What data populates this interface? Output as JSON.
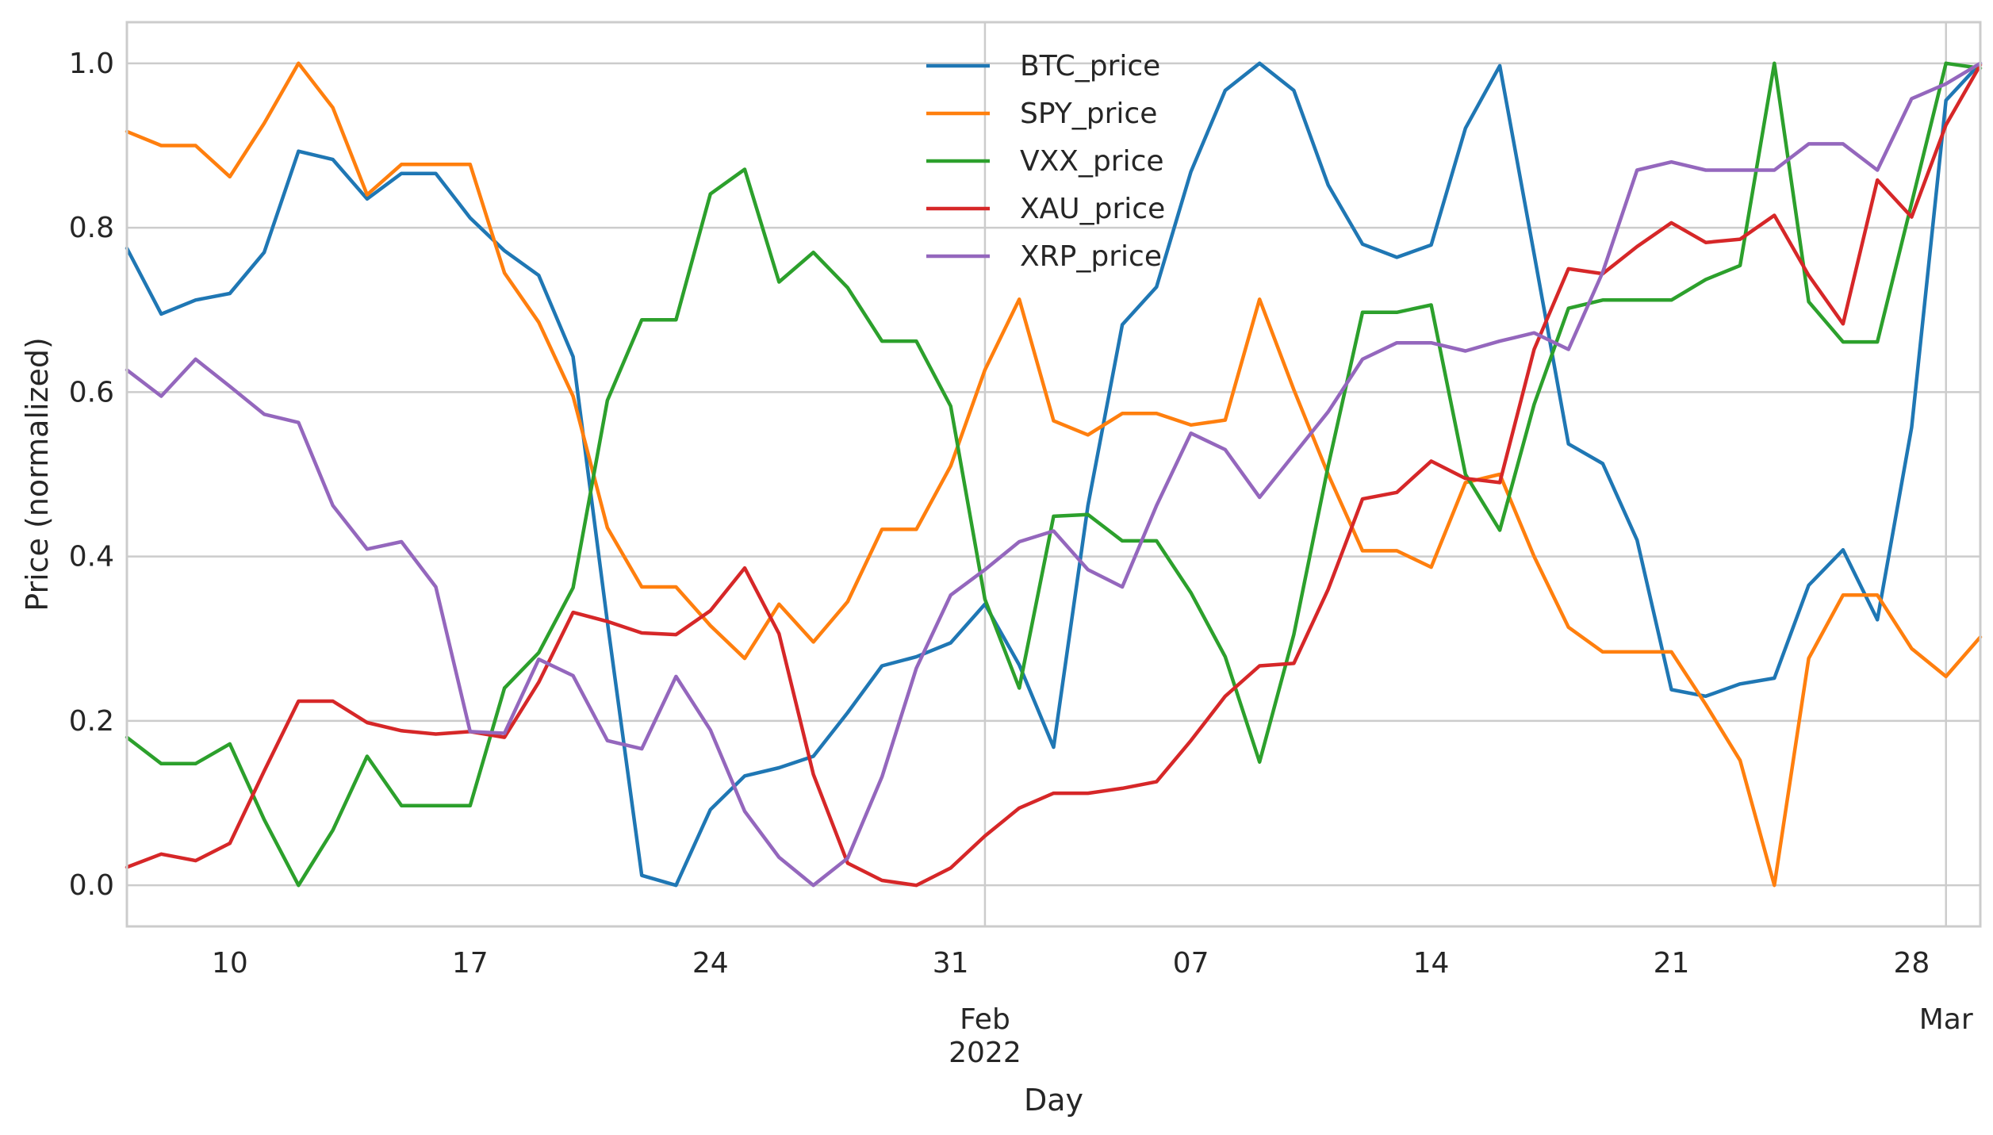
{
  "chart_data": {
    "type": "line",
    "title": "",
    "xlabel": "Day",
    "ylabel": "Price (normalized)",
    "x": [
      "2022-01-07",
      "2022-01-08",
      "2022-01-09",
      "2022-01-10",
      "2022-01-11",
      "2022-01-12",
      "2022-01-13",
      "2022-01-14",
      "2022-01-15",
      "2022-01-16",
      "2022-01-17",
      "2022-01-18",
      "2022-01-19",
      "2022-01-20",
      "2022-01-21",
      "2022-01-22",
      "2022-01-23",
      "2022-01-24",
      "2022-01-25",
      "2022-01-26",
      "2022-01-27",
      "2022-01-28",
      "2022-01-29",
      "2022-01-30",
      "2022-01-31",
      "2022-02-01",
      "2022-02-02",
      "2022-02-03",
      "2022-02-04",
      "2022-02-05",
      "2022-02-06",
      "2022-02-07",
      "2022-02-08",
      "2022-02-09",
      "2022-02-10",
      "2022-02-11",
      "2022-02-12",
      "2022-02-13",
      "2022-02-14",
      "2022-02-15",
      "2022-02-16",
      "2022-02-17",
      "2022-02-18",
      "2022-02-19",
      "2022-02-20",
      "2022-02-21",
      "2022-02-22",
      "2022-02-23",
      "2022-02-24",
      "2022-02-25",
      "2022-02-26",
      "2022-02-27",
      "2022-02-28",
      "2022-03-01",
      "2022-03-02"
    ],
    "xlim": [
      "2022-01-07",
      "2022-03-02"
    ],
    "ylim": [
      -0.05,
      1.05
    ],
    "y_ticks": [
      "0.0",
      "0.2",
      "0.4",
      "0.6",
      "0.8",
      "1.0"
    ],
    "y_tick_values": [
      0,
      0.2,
      0.4,
      0.6,
      0.8,
      1.0
    ],
    "x_ticks": [
      {
        "date": "2022-01-10",
        "label": "10",
        "sub": ""
      },
      {
        "date": "2022-01-17",
        "label": "17",
        "sub": ""
      },
      {
        "date": "2022-01-24",
        "label": "24",
        "sub": ""
      },
      {
        "date": "2022-01-31",
        "label": "31",
        "sub": ""
      },
      {
        "date": "2022-02-01",
        "label": "",
        "sub": "Feb\n2022"
      },
      {
        "date": "2022-02-07",
        "label": "07",
        "sub": ""
      },
      {
        "date": "2022-02-14",
        "label": "14",
        "sub": ""
      },
      {
        "date": "2022-02-21",
        "label": "21",
        "sub": ""
      },
      {
        "date": "2022-02-28",
        "label": "28",
        "sub": ""
      },
      {
        "date": "2022-03-01",
        "label": "",
        "sub": "Mar"
      }
    ],
    "grid": true,
    "legend_position": "top-center",
    "series": [
      {
        "name": "BTC_price",
        "color": "#1f77b4",
        "values": [
          0.775,
          0.695,
          0.712,
          0.72,
          0.77,
          0.893,
          0.883,
          0.835,
          0.866,
          0.866,
          0.812,
          0.772,
          0.742,
          0.643,
          0.32,
          0.012,
          0.0,
          0.092,
          0.133,
          0.143,
          0.157,
          0.21,
          0.267,
          0.278,
          0.295,
          0.342,
          0.268,
          0.168,
          0.462,
          0.682,
          0.728,
          0.868,
          0.967,
          1.0,
          0.967,
          0.852,
          0.78,
          0.764,
          0.779,
          0.921,
          0.997,
          0.768,
          0.537,
          0.513,
          0.42,
          0.238,
          0.23,
          0.245,
          0.252,
          0.365,
          0.408,
          0.323,
          0.557,
          0.955,
          1.0
        ]
      },
      {
        "name": "SPY_price",
        "color": "#ff7f0e",
        "values": [
          0.917,
          0.9,
          0.9,
          0.862,
          0.927,
          1.0,
          0.946,
          0.84,
          0.877,
          0.877,
          0.877,
          0.745,
          0.685,
          0.595,
          0.435,
          0.363,
          0.363,
          0.316,
          0.276,
          0.342,
          0.296,
          0.345,
          0.433,
          0.433,
          0.51,
          0.627,
          0.713,
          0.565,
          0.548,
          0.574,
          0.574,
          0.56,
          0.566,
          0.713,
          0.603,
          0.5,
          0.407,
          0.407,
          0.387,
          0.49,
          0.5,
          0.4,
          0.314,
          0.284,
          0.284,
          0.284,
          0.22,
          0.152,
          0.0,
          0.276,
          0.353,
          0.353,
          0.288,
          0.254,
          0.302
        ]
      },
      {
        "name": "VXX_price",
        "color": "#2ca02c",
        "values": [
          0.18,
          0.148,
          0.148,
          0.172,
          0.08,
          0.0,
          0.067,
          0.157,
          0.097,
          0.097,
          0.097,
          0.24,
          0.283,
          0.362,
          0.59,
          0.688,
          0.688,
          0.841,
          0.871,
          0.734,
          0.77,
          0.727,
          0.662,
          0.662,
          0.583,
          0.348,
          0.24,
          0.449,
          0.451,
          0.419,
          0.419,
          0.356,
          0.278,
          0.15,
          0.305,
          0.51,
          0.697,
          0.697,
          0.706,
          0.5,
          0.432,
          0.585,
          0.702,
          0.712,
          0.712,
          0.712,
          0.737,
          0.754,
          1.0,
          0.71,
          0.661,
          0.661,
          0.83,
          1.0,
          0.994
        ]
      },
      {
        "name": "XAU_price",
        "color": "#d62728",
        "values": [
          0.022,
          0.038,
          0.03,
          0.051,
          0.139,
          0.224,
          0.224,
          0.198,
          0.188,
          0.184,
          0.187,
          0.18,
          0.247,
          0.332,
          0.321,
          0.307,
          0.305,
          0.334,
          0.386,
          0.306,
          0.135,
          0.027,
          0.006,
          0.0,
          0.021,
          0.06,
          0.094,
          0.112,
          0.112,
          0.118,
          0.126,
          0.176,
          0.23,
          0.267,
          0.27,
          0.36,
          0.47,
          0.478,
          0.516,
          0.495,
          0.49,
          0.652,
          0.75,
          0.744,
          0.777,
          0.806,
          0.782,
          0.786,
          0.815,
          0.742,
          0.683,
          0.858,
          0.813,
          0.925,
          0.998
        ]
      },
      {
        "name": "XRP_price",
        "color": "#9467bd",
        "values": [
          0.627,
          0.595,
          0.64,
          0.607,
          0.573,
          0.563,
          0.462,
          0.409,
          0.418,
          0.363,
          0.187,
          0.185,
          0.275,
          0.255,
          0.176,
          0.166,
          0.254,
          0.189,
          0.09,
          0.034,
          0.0,
          0.033,
          0.132,
          0.264,
          0.353,
          0.384,
          0.418,
          0.431,
          0.384,
          0.363,
          0.462,
          0.55,
          0.53,
          0.472,
          0.524,
          0.576,
          0.64,
          0.66,
          0.66,
          0.65,
          0.662,
          0.672,
          0.652,
          0.746,
          0.87,
          0.88,
          0.87,
          0.87,
          0.87,
          0.902,
          0.902,
          0.87,
          0.957,
          0.975,
          1.0
        ]
      }
    ]
  }
}
